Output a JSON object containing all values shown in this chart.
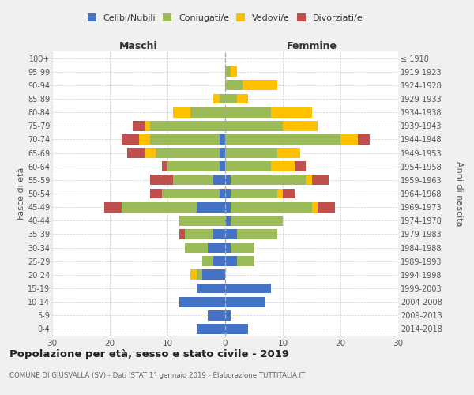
{
  "age_groups": [
    "0-4",
    "5-9",
    "10-14",
    "15-19",
    "20-24",
    "25-29",
    "30-34",
    "35-39",
    "40-44",
    "45-49",
    "50-54",
    "55-59",
    "60-64",
    "65-69",
    "70-74",
    "75-79",
    "80-84",
    "85-89",
    "90-94",
    "95-99",
    "100+"
  ],
  "birth_years": [
    "2014-2018",
    "2009-2013",
    "2004-2008",
    "1999-2003",
    "1994-1998",
    "1989-1993",
    "1984-1988",
    "1979-1983",
    "1974-1978",
    "1969-1973",
    "1964-1968",
    "1959-1963",
    "1954-1958",
    "1949-1953",
    "1944-1948",
    "1939-1943",
    "1934-1938",
    "1929-1933",
    "1924-1928",
    "1919-1923",
    "≤ 1918"
  ],
  "male": {
    "celibi": [
      5,
      3,
      8,
      5,
      4,
      2,
      3,
      2,
      0,
      5,
      1,
      2,
      1,
      1,
      1,
      0,
      0,
      0,
      0,
      0,
      0
    ],
    "coniugati": [
      0,
      0,
      0,
      0,
      1,
      2,
      4,
      5,
      8,
      13,
      10,
      7,
      9,
      11,
      12,
      13,
      6,
      1,
      0,
      0,
      0
    ],
    "vedovi": [
      0,
      0,
      0,
      0,
      1,
      0,
      0,
      0,
      0,
      0,
      0,
      0,
      0,
      2,
      2,
      1,
      3,
      1,
      0,
      0,
      0
    ],
    "divorziati": [
      0,
      0,
      0,
      0,
      0,
      0,
      0,
      1,
      0,
      3,
      2,
      4,
      1,
      3,
      3,
      2,
      0,
      0,
      0,
      0,
      0
    ]
  },
  "female": {
    "nubili": [
      4,
      1,
      7,
      8,
      0,
      2,
      1,
      2,
      1,
      1,
      1,
      1,
      0,
      0,
      0,
      0,
      0,
      0,
      0,
      0,
      0
    ],
    "coniugate": [
      0,
      0,
      0,
      0,
      0,
      3,
      4,
      7,
      9,
      14,
      8,
      13,
      8,
      9,
      20,
      10,
      8,
      2,
      3,
      1,
      0
    ],
    "vedove": [
      0,
      0,
      0,
      0,
      0,
      0,
      0,
      0,
      0,
      1,
      1,
      1,
      4,
      4,
      3,
      6,
      7,
      2,
      6,
      1,
      0
    ],
    "divorziate": [
      0,
      0,
      0,
      0,
      0,
      0,
      0,
      0,
      0,
      3,
      2,
      3,
      2,
      0,
      2,
      0,
      0,
      0,
      0,
      0,
      0
    ]
  },
  "colors": {
    "celibi_nubili": "#4472C4",
    "coniugati": "#9BBB59",
    "vedovi": "#FFC000",
    "divorziati": "#C0504D"
  },
  "xlim": 30,
  "title": "Popolazione per età, sesso e stato civile - 2019",
  "subtitle": "COMUNE DI GIUSVALLA (SV) - Dati ISTAT 1° gennaio 2019 - Elaborazione TUTTITALIA.IT",
  "ylabel_left": "Fasce di età",
  "ylabel_right": "Anni di nascita",
  "xlabel_left": "Maschi",
  "xlabel_right": "Femmine",
  "bg_color": "#f0f0f0",
  "plot_bg": "#ffffff"
}
